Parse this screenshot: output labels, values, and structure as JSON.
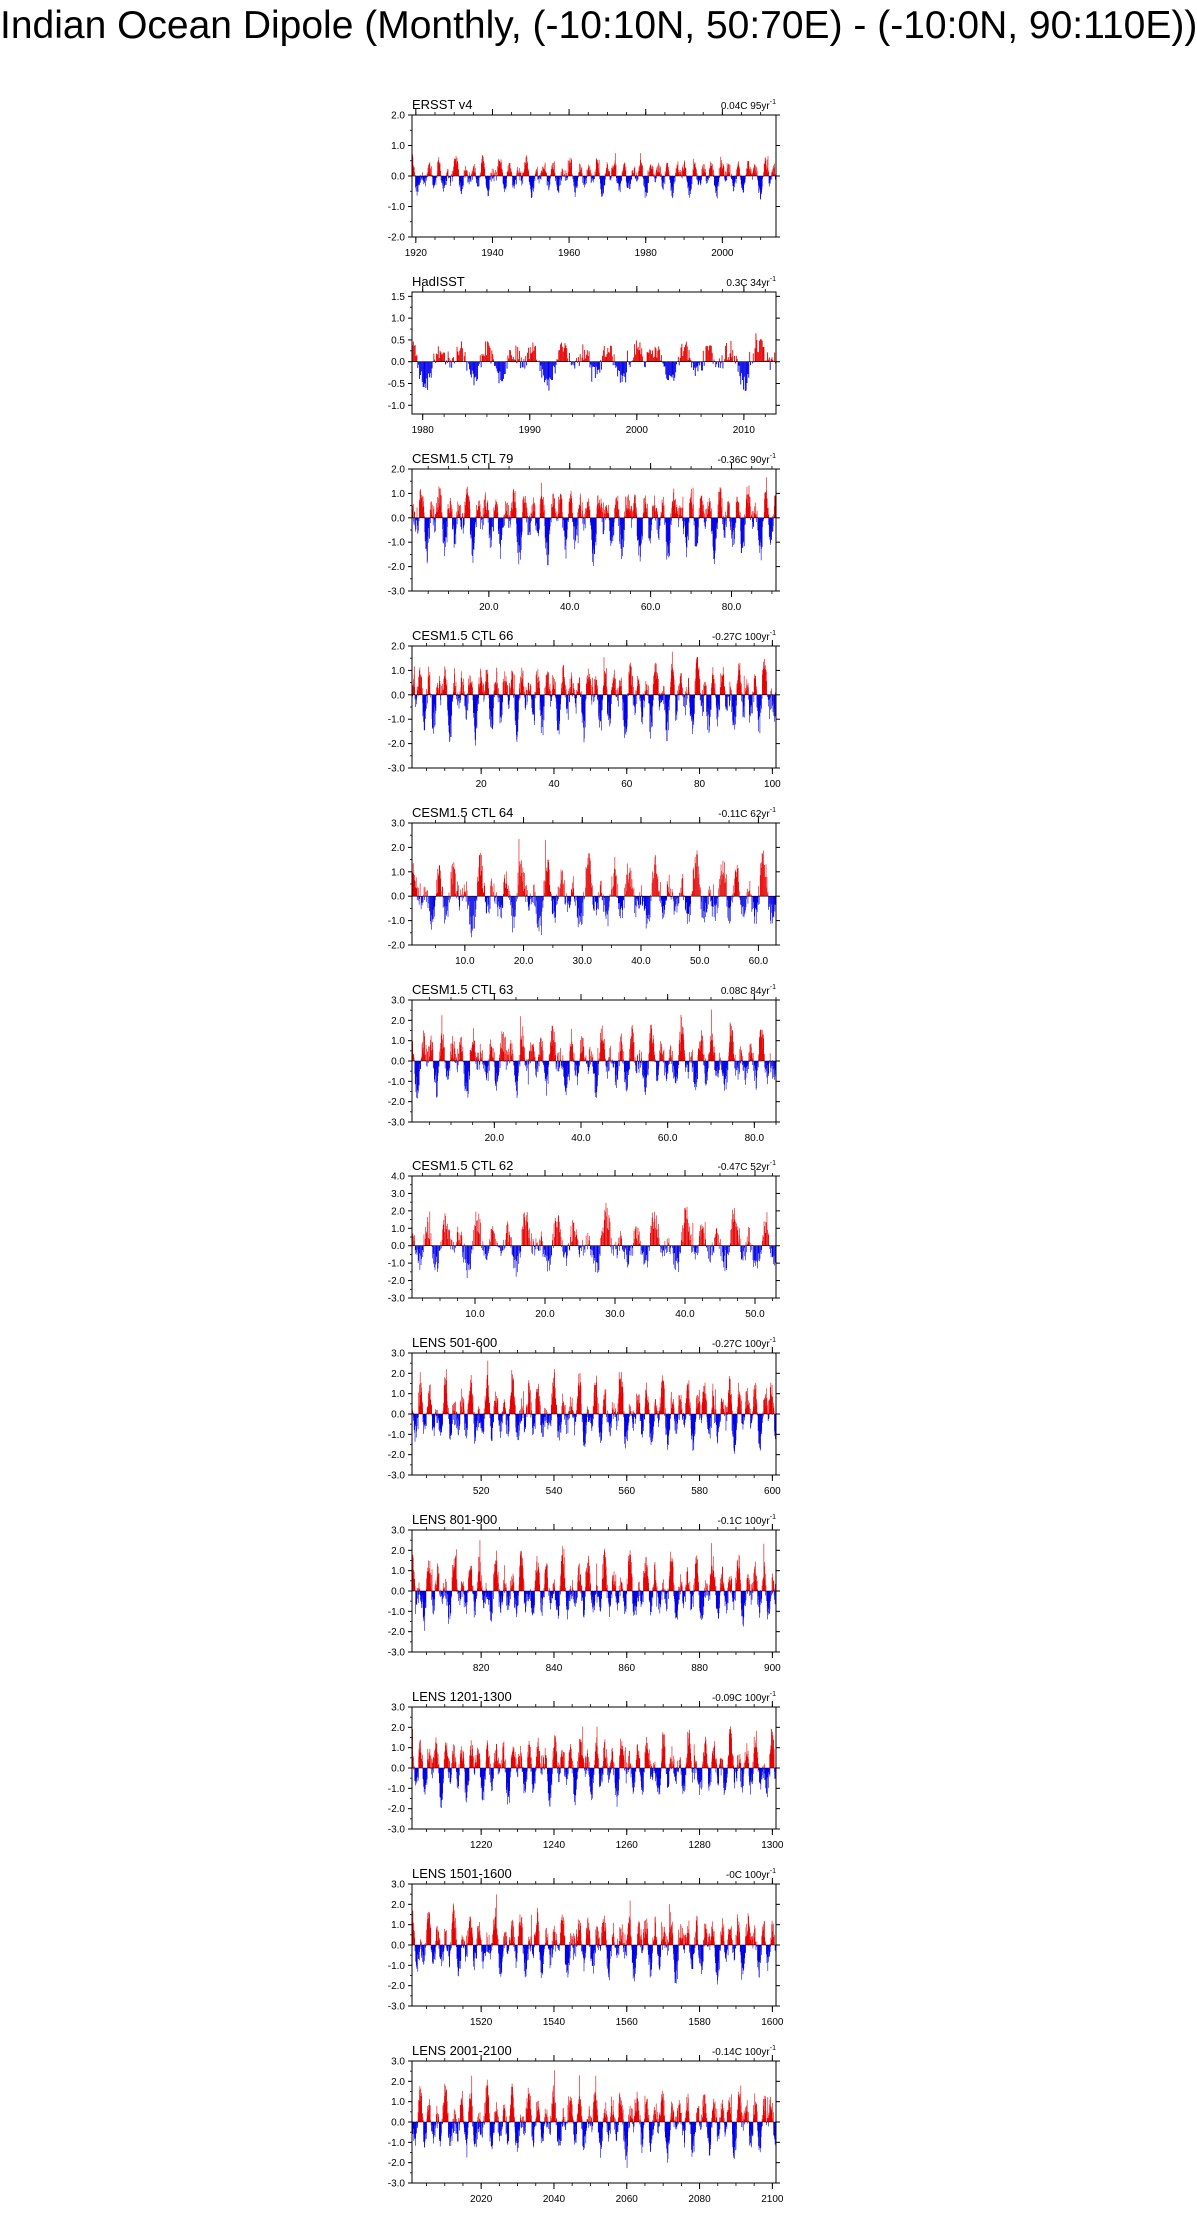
{
  "title": "Indian Ocean Dipole (Monthly, (-10:10N, 50:70E) - (-10:0N, 90:110E))",
  "colors": {
    "positive": "#e60000",
    "negative": "#0000e6",
    "axis": "#000000"
  },
  "chart_data": [
    {
      "type": "bar",
      "name": "ERSST v4",
      "trend": "0.04C 95yr",
      "trend_unit_exp": "-1",
      "xlim": [
        1919,
        2014
      ],
      "xticks": [
        1920,
        1940,
        1960,
        1980,
        2000
      ],
      "xtick_labels": [
        "1920",
        "1940",
        "1960",
        "1980",
        "2000"
      ],
      "ylim": [
        -2.0,
        2.0
      ],
      "yticks": [
        2.0,
        1.0,
        0.0,
        -1.0,
        -2.0
      ],
      "ytick_labels": [
        "2.0",
        "1.0",
        "0.0",
        "-1.0",
        "-2.0"
      ],
      "amp_pos": 0.55,
      "amp_neg": 0.55,
      "seed": 11
    },
    {
      "type": "bar",
      "name": "HadISST",
      "trend": "0.3C 34yr",
      "trend_unit_exp": "-1",
      "xlim": [
        1979,
        2013
      ],
      "xticks": [
        1980,
        1990,
        2000,
        2010
      ],
      "xtick_labels": [
        "1980",
        "1990",
        "2000",
        "2010"
      ],
      "ylim": [
        -1.2,
        1.6
      ],
      "yticks": [
        1.5,
        1.0,
        0.5,
        0.0,
        -0.5,
        -1.0
      ],
      "ytick_labels": [
        "1.5",
        "1.0",
        "0.5",
        "0.0",
        "-0.5",
        "-1.0"
      ],
      "amp_pos": 0.55,
      "amp_neg": 0.5,
      "seed": 23
    },
    {
      "type": "bar",
      "name": "CESM1.5 CTL 79",
      "trend": "-0.36C 90yr",
      "trend_unit_exp": "-1",
      "xlim": [
        1,
        91
      ],
      "xticks": [
        20,
        40,
        60,
        80
      ],
      "xtick_labels": [
        "20.0",
        "40.0",
        "60.0",
        "80.0"
      ],
      "ylim": [
        -3.0,
        2.0
      ],
      "yticks": [
        2.0,
        1.0,
        0.0,
        -1.0,
        -2.0,
        -3.0
      ],
      "ytick_labels": [
        "2.0",
        "1.0",
        "0.0",
        "-1.0",
        "-2.0",
        "-3.0"
      ],
      "amp_pos": 1.2,
      "amp_neg": 1.5,
      "seed": 37
    },
    {
      "type": "bar",
      "name": "CESM1.5 CTL 66",
      "trend": "-0.27C 100yr",
      "trend_unit_exp": "-1",
      "xlim": [
        1,
        101
      ],
      "xticks": [
        20,
        40,
        60,
        80,
        100
      ],
      "xtick_labels": [
        "20",
        "40",
        "60",
        "80",
        "100"
      ],
      "ylim": [
        -3.0,
        2.0
      ],
      "yticks": [
        2.0,
        1.0,
        0.0,
        -1.0,
        -2.0,
        -3.0
      ],
      "ytick_labels": [
        "2.0",
        "1.0",
        "0.0",
        "-1.0",
        "-2.0",
        "-3.0"
      ],
      "amp_pos": 1.2,
      "amp_neg": 1.5,
      "seed": 41
    },
    {
      "type": "bar",
      "name": "CESM1.5 CTL 64",
      "trend": "-0.11C 62yr",
      "trend_unit_exp": "-1",
      "xlim": [
        1,
        63
      ],
      "xticks": [
        10,
        20,
        30,
        40,
        50,
        60
      ],
      "xtick_labels": [
        "10.0",
        "20.0",
        "30.0",
        "40.0",
        "50.0",
        "60.0"
      ],
      "ylim": [
        -2.0,
        3.0
      ],
      "yticks": [
        3.0,
        2.0,
        1.0,
        0.0,
        -1.0,
        -2.0
      ],
      "ytick_labels": [
        "3.0",
        "2.0",
        "1.0",
        "0.0",
        "-1.0",
        "-2.0"
      ],
      "amp_pos": 1.4,
      "amp_neg": 1.3,
      "seed": 53
    },
    {
      "type": "bar",
      "name": "CESM1.5 CTL 63",
      "trend": "0.08C 84yr",
      "trend_unit_exp": "-1",
      "xlim": [
        1,
        85
      ],
      "xticks": [
        20,
        40,
        60,
        80
      ],
      "xtick_labels": [
        "20.0",
        "40.0",
        "60.0",
        "80.0"
      ],
      "ylim": [
        -3.0,
        3.0
      ],
      "yticks": [
        3.0,
        2.0,
        1.0,
        0.0,
        -1.0,
        -2.0,
        -3.0
      ],
      "ytick_labels": [
        "3.0",
        "2.0",
        "1.0",
        "0.0",
        "-1.0",
        "-2.0",
        "-3.0"
      ],
      "amp_pos": 1.5,
      "amp_neg": 1.4,
      "seed": 67
    },
    {
      "type": "bar",
      "name": "CESM1.5 CTL 62",
      "trend": "-0.47C 52yr",
      "trend_unit_exp": "-1",
      "xlim": [
        1,
        53
      ],
      "xticks": [
        10,
        20,
        30,
        40,
        50
      ],
      "xtick_labels": [
        "10.0",
        "20.0",
        "30.0",
        "40.0",
        "50.0"
      ],
      "ylim": [
        -3.0,
        4.0
      ],
      "yticks": [
        4.0,
        3.0,
        2.0,
        1.0,
        0.0,
        -1.0,
        -2.0,
        -3.0
      ],
      "ytick_labels": [
        "4.0",
        "3.0",
        "2.0",
        "1.0",
        "0.0",
        "-1.0",
        "-2.0",
        "-3.0"
      ],
      "amp_pos": 1.8,
      "amp_neg": 1.4,
      "seed": 71
    },
    {
      "type": "bar",
      "name": "LENS 501-600",
      "trend": "-0.27C 100yr",
      "trend_unit_exp": "-1",
      "xlim": [
        501,
        601
      ],
      "xticks": [
        520,
        540,
        560,
        580,
        600
      ],
      "xtick_labels": [
        "520",
        "540",
        "560",
        "580",
        "600"
      ],
      "ylim": [
        -3.0,
        3.0
      ],
      "yticks": [
        3.0,
        2.0,
        1.0,
        0.0,
        -1.0,
        -2.0,
        -3.0
      ],
      "ytick_labels": [
        "3.0",
        "2.0",
        "1.0",
        "0.0",
        "-1.0",
        "-2.0",
        "-3.0"
      ],
      "amp_pos": 1.6,
      "amp_neg": 1.4,
      "seed": 83
    },
    {
      "type": "bar",
      "name": "LENS 801-900",
      "trend": "-0.1C 100yr",
      "trend_unit_exp": "-1",
      "xlim": [
        801,
        901
      ],
      "xticks": [
        820,
        840,
        860,
        880,
        900
      ],
      "xtick_labels": [
        "820",
        "840",
        "860",
        "880",
        "900"
      ],
      "ylim": [
        -3.0,
        3.0
      ],
      "yticks": [
        3.0,
        2.0,
        1.0,
        0.0,
        -1.0,
        -2.0,
        -3.0
      ],
      "ytick_labels": [
        "3.0",
        "2.0",
        "1.0",
        "0.0",
        "-1.0",
        "-2.0",
        "-3.0"
      ],
      "amp_pos": 1.5,
      "amp_neg": 1.4,
      "seed": 97
    },
    {
      "type": "bar",
      "name": "LENS 1201-1300",
      "trend": "-0.09C 100yr",
      "trend_unit_exp": "-1",
      "xlim": [
        1201,
        1301
      ],
      "xticks": [
        1220,
        1240,
        1260,
        1280,
        1300
      ],
      "xtick_labels": [
        "1220",
        "1240",
        "1260",
        "1280",
        "1300"
      ],
      "ylim": [
        -3.0,
        3.0
      ],
      "yticks": [
        3.0,
        2.0,
        1.0,
        0.0,
        -1.0,
        -2.0,
        -3.0
      ],
      "ytick_labels": [
        "3.0",
        "2.0",
        "1.0",
        "0.0",
        "-1.0",
        "-2.0",
        "-3.0"
      ],
      "amp_pos": 1.5,
      "amp_neg": 1.4,
      "seed": 103
    },
    {
      "type": "bar",
      "name": "LENS 1501-1600",
      "trend": "-0C 100yr",
      "trend_unit_exp": "-1",
      "xlim": [
        1501,
        1601
      ],
      "xticks": [
        1520,
        1540,
        1560,
        1580,
        1600
      ],
      "xtick_labels": [
        "1520",
        "1540",
        "1560",
        "1580",
        "1600"
      ],
      "ylim": [
        -3.0,
        3.0
      ],
      "yticks": [
        3.0,
        2.0,
        1.0,
        0.0,
        -1.0,
        -2.0,
        -3.0
      ],
      "ytick_labels": [
        "3.0",
        "2.0",
        "1.0",
        "0.0",
        "-1.0",
        "-2.0",
        "-3.0"
      ],
      "amp_pos": 1.5,
      "amp_neg": 1.4,
      "seed": 109
    },
    {
      "type": "bar",
      "name": "LENS 2001-2100",
      "trend": "-0.14C 100yr",
      "trend_unit_exp": "-1",
      "xlim": [
        2001,
        2101
      ],
      "xticks": [
        2020,
        2040,
        2060,
        2080,
        2100
      ],
      "xtick_labels": [
        "2020",
        "2040",
        "2060",
        "2080",
        "2100"
      ],
      "ylim": [
        -3.0,
        3.0
      ],
      "yticks": [
        3.0,
        2.0,
        1.0,
        0.0,
        -1.0,
        -2.0,
        -3.0
      ],
      "ytick_labels": [
        "3.0",
        "2.0",
        "1.0",
        "0.0",
        "-1.0",
        "-2.0",
        "-3.0"
      ],
      "amp_pos": 1.5,
      "amp_neg": 1.4,
      "seed": 127
    }
  ]
}
